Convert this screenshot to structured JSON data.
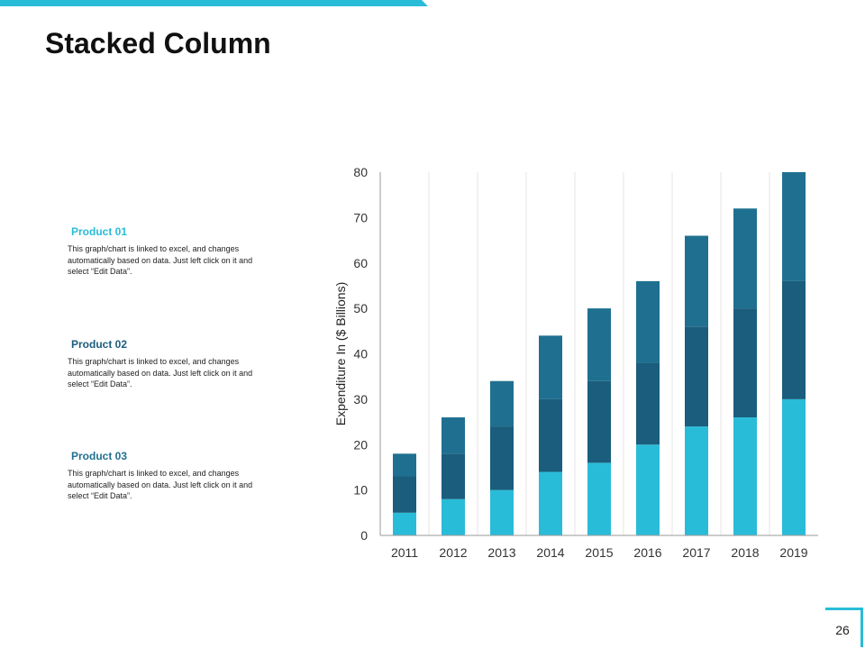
{
  "slide": {
    "title": "Stacked Column",
    "page_number": "26",
    "accent_color": "#29bcd8"
  },
  "products": [
    {
      "title": "Product 01",
      "color": "#29bcd8",
      "description": "This graph/chart is linked to excel, and changes automatically based on data. Just left click on it and select “Edit Data”."
    },
    {
      "title": "Product 02",
      "color": "#1a5d7c",
      "description": "This graph/chart is linked to excel, and changes automatically based on data. Just left click on it and select “Edit Data”."
    },
    {
      "title": "Product 03",
      "color": "#1f7090",
      "description": "This graph/chart is linked to excel, and changes automatically based on data. Just left click on it and select “Edit Data”."
    }
  ],
  "chart_data": {
    "type": "bar",
    "stacked": true,
    "title": "",
    "xlabel": "",
    "ylabel": "Expenditure In ($ Billions)",
    "ylim": [
      0,
      80
    ],
    "yticks": [
      0,
      10,
      20,
      30,
      40,
      50,
      60,
      70,
      80
    ],
    "categories": [
      "2011",
      "2012",
      "2013",
      "2014",
      "2015",
      "2016",
      "2017",
      "2018",
      "2019"
    ],
    "series": [
      {
        "color": "#29bcd8",
        "values": [
          5,
          8,
          10,
          14,
          16,
          20,
          24,
          26,
          30
        ]
      },
      {
        "color": "#1a5d7c",
        "values": [
          8,
          10,
          14,
          16,
          18,
          18,
          22,
          24,
          26
        ]
      },
      {
        "color": "#1f7090",
        "values": [
          5,
          8,
          10,
          14,
          16,
          18,
          20,
          22,
          24
        ]
      }
    ],
    "grid": "vertical",
    "legend": "none"
  }
}
